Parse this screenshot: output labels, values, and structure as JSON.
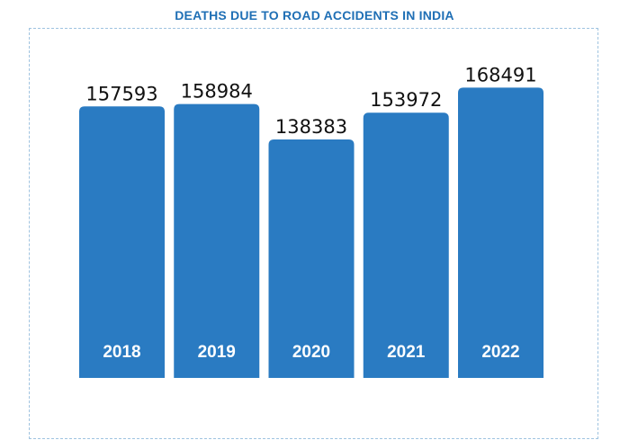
{
  "chart_data": {
    "type": "bar",
    "title": "DEATHS DUE TO ROAD ACCIDENTS IN INDIA",
    "categories": [
      "2018",
      "2019",
      "2020",
      "2021",
      "2022"
    ],
    "values": [
      157593,
      158984,
      138383,
      153972,
      168491
    ],
    "xlabel": "",
    "ylabel": "",
    "grid": false,
    "colors": {
      "bar": "#2a7bc2",
      "title": "#1f6fb5",
      "value_text": "#111111",
      "category_text": "#ffffff"
    }
  }
}
